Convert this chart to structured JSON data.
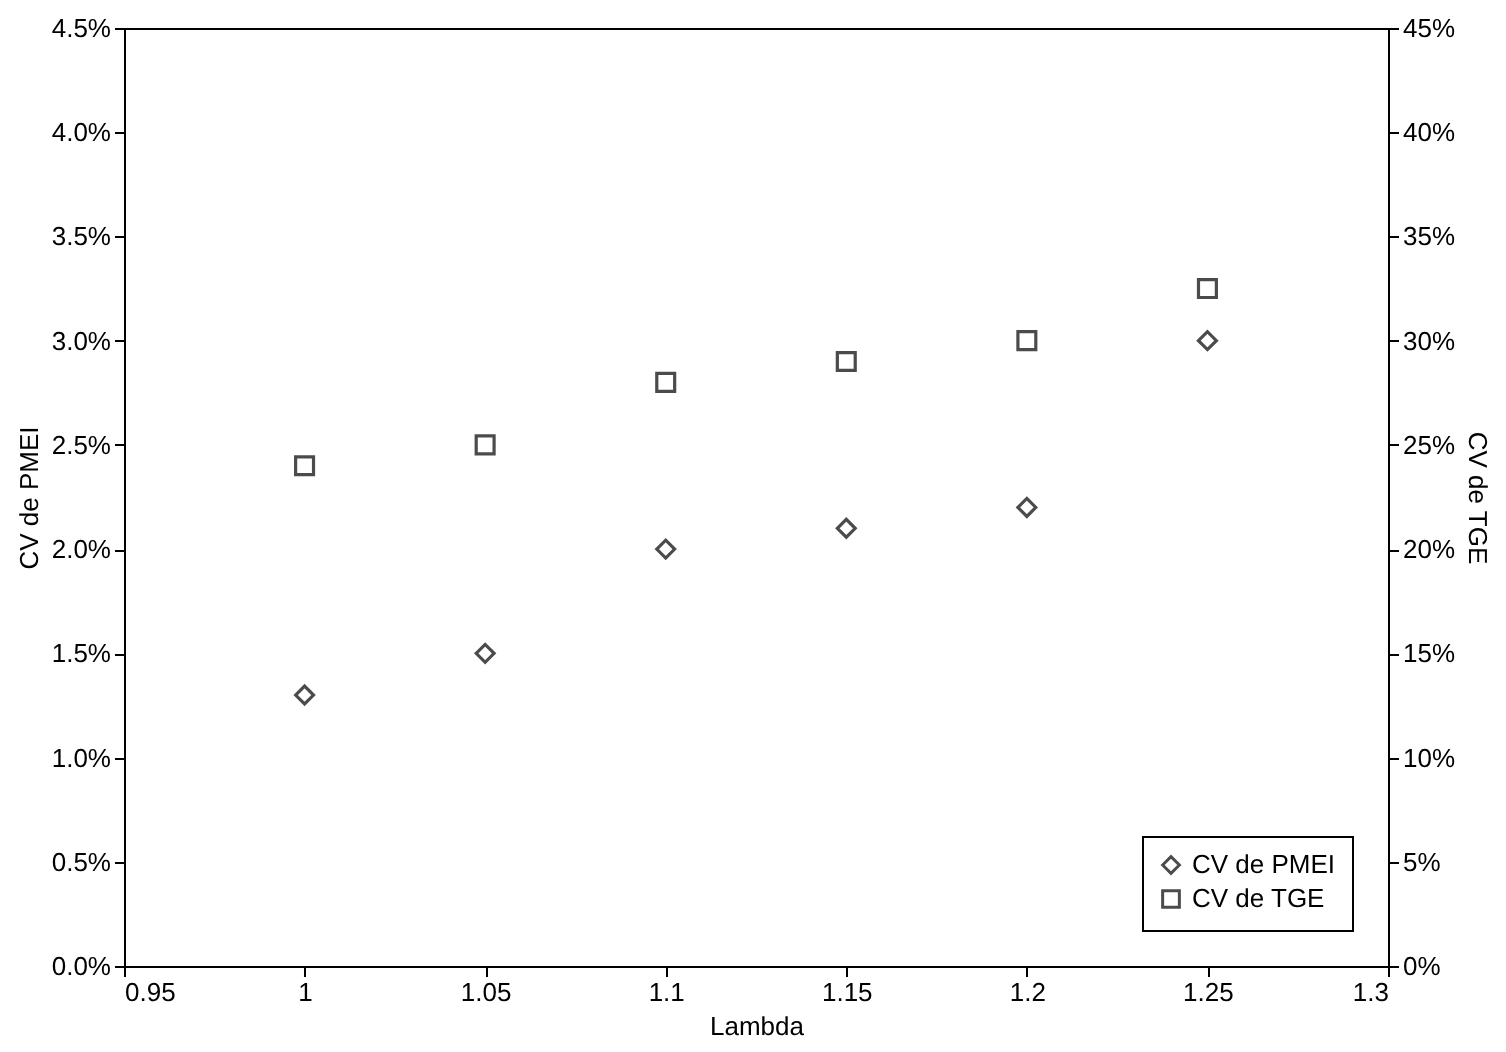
{
  "chart_data": {
    "type": "scatter",
    "xlabel": "Lambda",
    "ylabel": "CV de PMEI",
    "y2label": "CV de TGE",
    "x": [
      1,
      1.05,
      1.1,
      1.15,
      1.2,
      1.25
    ],
    "series": [
      {
        "name": "CV de PMEI",
        "color": "#000000",
        "marker": "diamond",
        "values": [
          1.3,
          1.5,
          2.0,
          2.1,
          2.2,
          3.0
        ]
      },
      {
        "name": "CV de TGE",
        "color": "#000000",
        "marker": "square",
        "axis": "y2",
        "values": [
          24,
          25,
          28,
          29,
          30,
          32.5
        ]
      }
    ],
    "xlim": [
      0.95,
      1.3
    ],
    "xticks": [
      0.95,
      1,
      1.05,
      1.1,
      1.15,
      1.2,
      1.25,
      1.3
    ],
    "ylim": [
      0,
      4.5
    ],
    "yticks": [
      {
        "value": 0,
        "label": "0.0%"
      },
      {
        "value": 0.5,
        "label": "0.5%"
      },
      {
        "value": 1,
        "label": "1.0%"
      },
      {
        "value": 1.5,
        "label": "1.5%"
      },
      {
        "value": 2,
        "label": "2.0%"
      },
      {
        "value": 2.5,
        "label": "2.5%"
      },
      {
        "value": 3,
        "label": "3.0%"
      },
      {
        "value": 3.5,
        "label": "3.5%"
      },
      {
        "value": 4,
        "label": "4.0%"
      },
      {
        "value": 4.5,
        "label": "4.5%"
      }
    ],
    "y2lim": [
      0,
      45
    ],
    "y2ticks": [
      {
        "value": 0,
        "label": "0%"
      },
      {
        "value": 5,
        "label": "5%"
      },
      {
        "value": 10,
        "label": "10%"
      },
      {
        "value": 15,
        "label": "15%"
      },
      {
        "value": 20,
        "label": "20%"
      },
      {
        "value": 25,
        "label": "25%"
      },
      {
        "value": 30,
        "label": "30%"
      },
      {
        "value": 35,
        "label": "35%"
      },
      {
        "value": 40,
        "label": "40%"
      },
      {
        "value": 45,
        "label": "45%"
      }
    ],
    "grid": false,
    "legend": "bottom right"
  }
}
